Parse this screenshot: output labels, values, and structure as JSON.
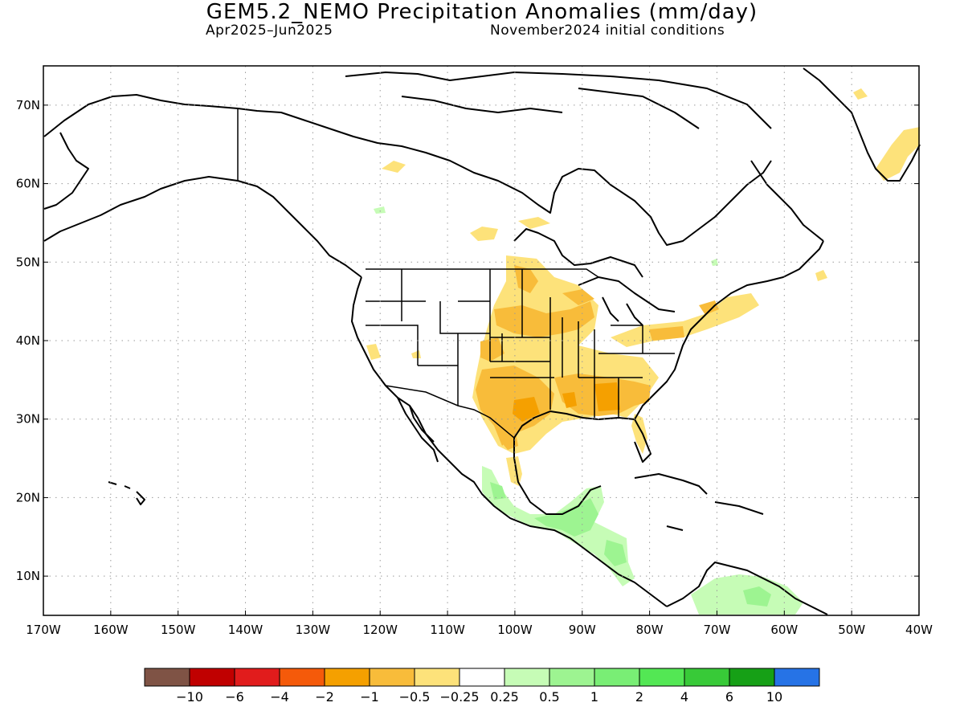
{
  "title": "GEM5.2_NEMO Precipitation Anomalies (mm/day)",
  "subtitle_left": "Apr2025–Jun2025",
  "subtitle_right": "November2024 initial conditions",
  "map": {
    "lon_range": [
      -170,
      -40
    ],
    "lat_range": [
      5,
      75
    ],
    "lon_ticks": [
      {
        "value": -170,
        "label": "170W"
      },
      {
        "value": -160,
        "label": "160W"
      },
      {
        "value": -150,
        "label": "150W"
      },
      {
        "value": -140,
        "label": "140W"
      },
      {
        "value": -130,
        "label": "130W"
      },
      {
        "value": -120,
        "label": "120W"
      },
      {
        "value": -110,
        "label": "110W"
      },
      {
        "value": -100,
        "label": "100W"
      },
      {
        "value": -90,
        "label": "90W"
      },
      {
        "value": -80,
        "label": "80W"
      },
      {
        "value": -70,
        "label": "70W"
      },
      {
        "value": -60,
        "label": "60W"
      },
      {
        "value": -50,
        "label": "50W"
      },
      {
        "value": -40,
        "label": "40W"
      }
    ],
    "lat_ticks": [
      {
        "value": 10,
        "label": "10N"
      },
      {
        "value": 20,
        "label": "20N"
      },
      {
        "value": 30,
        "label": "30N"
      },
      {
        "value": 40,
        "label": "40N"
      },
      {
        "value": 50,
        "label": "50N"
      },
      {
        "value": 60,
        "label": "60N"
      },
      {
        "value": 70,
        "label": "70N"
      }
    ],
    "grid": "dotted"
  },
  "colorbar": {
    "colors": [
      "#7f5345",
      "#c00000",
      "#e11c1c",
      "#f55a0a",
      "#f5a000",
      "#f8bc3a",
      "#fde27a",
      "#ffffff",
      "#c6fcb6",
      "#9df491",
      "#79ee75",
      "#53e754",
      "#38ca38",
      "#16a016",
      "#2673e6"
    ],
    "labels": [
      "−10",
      "−6",
      "−4",
      "−2",
      "−1",
      "−0.5",
      "−0.25",
      "0.25",
      "0.5",
      "1",
      "2",
      "4",
      "6",
      "10"
    ]
  }
}
